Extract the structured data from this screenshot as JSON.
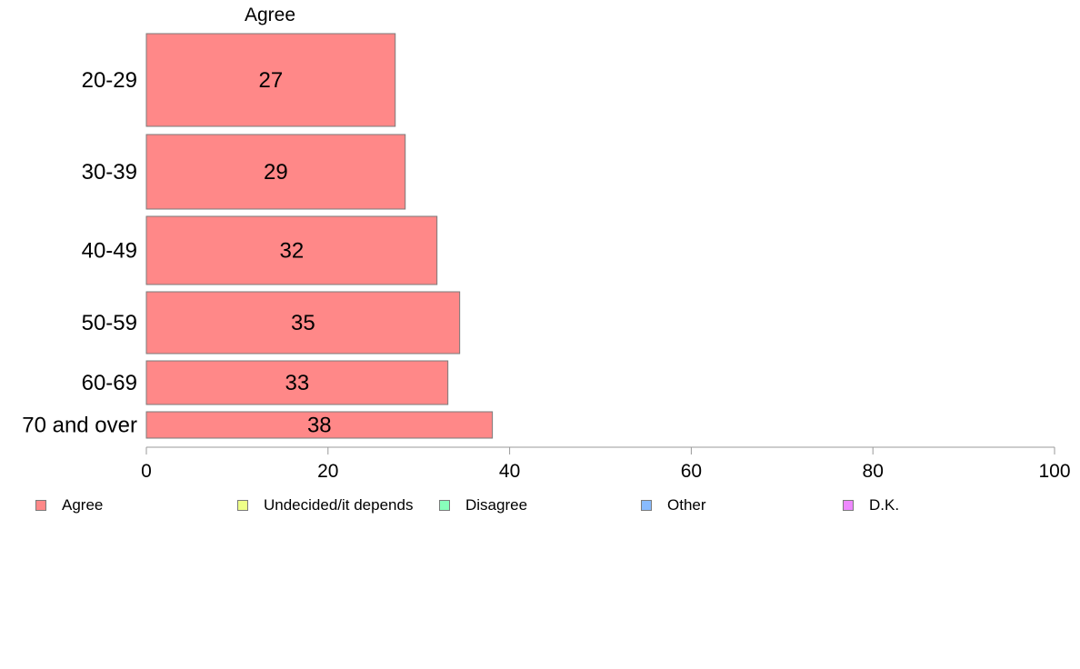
{
  "chart_data": {
    "type": "bar",
    "orientation": "horizontal",
    "title": "Agree",
    "categories": [
      "20-29",
      "30-39",
      "40-49",
      "50-59",
      "60-69",
      "70 and over"
    ],
    "series": [
      {
        "name": "Agree",
        "values": [
          27.4,
          28.5,
          32.0,
          34.5,
          33.2,
          38.1
        ],
        "labels": [
          "27",
          "29",
          "32",
          "35",
          "33",
          "38"
        ]
      }
    ],
    "xlim": [
      0,
      100
    ],
    "xticks": [
      0,
      20,
      40,
      60,
      80,
      100
    ],
    "grid": false,
    "legend": {
      "placement": "bottom",
      "entries": [
        {
          "label": "Agree",
          "color": "#ff8888"
        },
        {
          "label": "Undecided/it depends",
          "color": "#eeff88"
        },
        {
          "label": "Disagree",
          "color": "#88ffbb"
        },
        {
          "label": "Other",
          "color": "#88bbff"
        },
        {
          "label": "D.K.",
          "color": "#ee88ff"
        }
      ]
    },
    "colors": {
      "bar": "#ff8888",
      "bar_border": "#7a7a7a",
      "axis": "#999999"
    }
  }
}
